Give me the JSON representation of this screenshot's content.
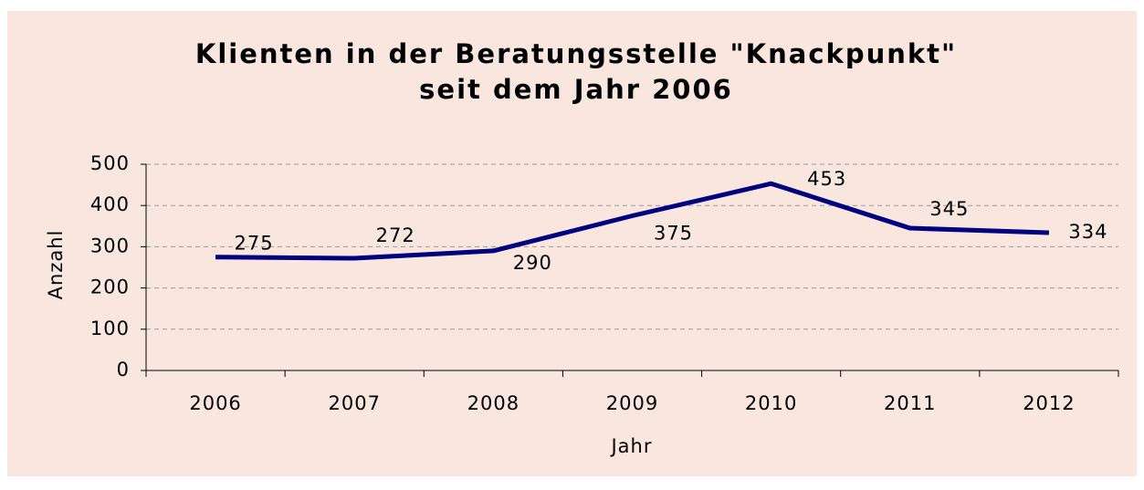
{
  "chart_data": {
    "type": "line",
    "title": [
      "Klienten in der Beratungsstelle \"Knackpunkt\"",
      "seit dem Jahr 2006"
    ],
    "x_label": "Jahr",
    "y_label": "Anzahl",
    "categories": [
      "2006",
      "2007",
      "2008",
      "2009",
      "2010",
      "2011",
      "2012"
    ],
    "series": [
      {
        "name": "Klienten",
        "color": "#000080",
        "values": [
          275,
          272,
          290,
          375,
          453,
          345,
          334
        ]
      }
    ],
    "ylim": [
      0,
      500
    ],
    "yticks": [
      0,
      100,
      200,
      300,
      400,
      500
    ],
    "grid": true
  }
}
